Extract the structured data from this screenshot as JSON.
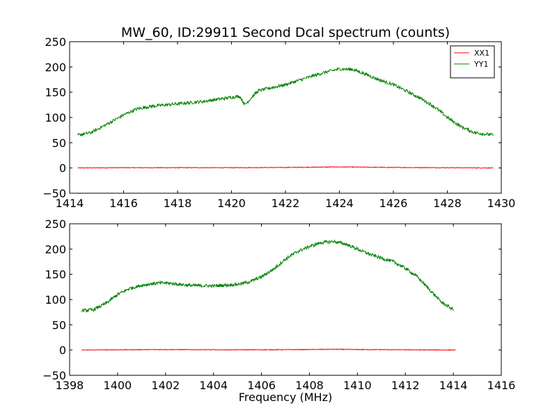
{
  "chart_data": [
    {
      "type": "line",
      "title": "MW_60, ID:29911 Second Dcal spectrum (counts)",
      "xlabel": "",
      "ylabel": "",
      "xlim": [
        1414,
        1430
      ],
      "ylim": [
        -50,
        250
      ],
      "xticks": [
        1414,
        1416,
        1418,
        1420,
        1422,
        1424,
        1426,
        1428,
        1430
      ],
      "yticks": [
        -50,
        0,
        50,
        100,
        150,
        200,
        250
      ],
      "legend_placement": "top-right",
      "series": [
        {
          "name": "XX1",
          "color": "#ff0000",
          "x": [
            1414.3,
            1416,
            1418,
            1420,
            1422,
            1423,
            1424,
            1425,
            1426,
            1428,
            1429.7
          ],
          "values": [
            0,
            0.5,
            0.5,
            0.5,
            1,
            1.5,
            2,
            1.5,
            1,
            0.5,
            0
          ]
        },
        {
          "name": "YY1",
          "color": "#008000",
          "x": [
            1414.3,
            1414.8,
            1415.5,
            1416.0,
            1416.5,
            1417.0,
            1418.0,
            1419.0,
            1420.0,
            1420.3,
            1420.5,
            1420.8,
            1421.0,
            1422.0,
            1423.0,
            1423.5,
            1424.0,
            1424.5,
            1425.0,
            1425.5,
            1426.0,
            1426.5,
            1427.0,
            1427.5,
            1428.0,
            1428.5,
            1429.0,
            1429.7
          ],
          "values": [
            65,
            70,
            90,
            105,
            117,
            122,
            127,
            132,
            140,
            142,
            125,
            143,
            153,
            165,
            182,
            190,
            196,
            195,
            185,
            174,
            165,
            152,
            138,
            122,
            100,
            82,
            70,
            65
          ]
        }
      ]
    },
    {
      "type": "line",
      "title": "",
      "xlabel": "Frequency (MHz)",
      "ylabel": "",
      "xlim": [
        1398,
        1416
      ],
      "ylim": [
        -50,
        250
      ],
      "xticks": [
        1398,
        1400,
        1402,
        1404,
        1406,
        1408,
        1410,
        1412,
        1414,
        1416
      ],
      "yticks": [
        -50,
        0,
        50,
        100,
        150,
        200,
        250
      ],
      "series": [
        {
          "color": "#ff0000",
          "x": [
            1398.5,
            1400,
            1402,
            1404,
            1406,
            1408,
            1409,
            1410,
            1412,
            1414.1
          ],
          "values": [
            0,
            0.5,
            1,
            0.5,
            0.5,
            1,
            1.5,
            1,
            0.5,
            0
          ]
        },
        {
          "color": "#008000",
          "x": [
            1398.5,
            1399.0,
            1399.5,
            1400.0,
            1400.5,
            1401.0,
            1401.5,
            1402.0,
            1403.0,
            1404.0,
            1405.0,
            1405.5,
            1406.0,
            1406.5,
            1407.0,
            1407.5,
            1408.0,
            1408.5,
            1409.0,
            1409.5,
            1410.0,
            1410.5,
            1411.0,
            1411.5,
            1412.0,
            1412.5,
            1413.0,
            1413.5,
            1414.0
          ],
          "values": [
            78,
            80,
            92,
            110,
            122,
            128,
            132,
            133,
            128,
            127,
            130,
            135,
            145,
            160,
            180,
            195,
            205,
            213,
            215,
            210,
            200,
            190,
            182,
            175,
            162,
            145,
            120,
            95,
            80
          ]
        }
      ]
    }
  ]
}
